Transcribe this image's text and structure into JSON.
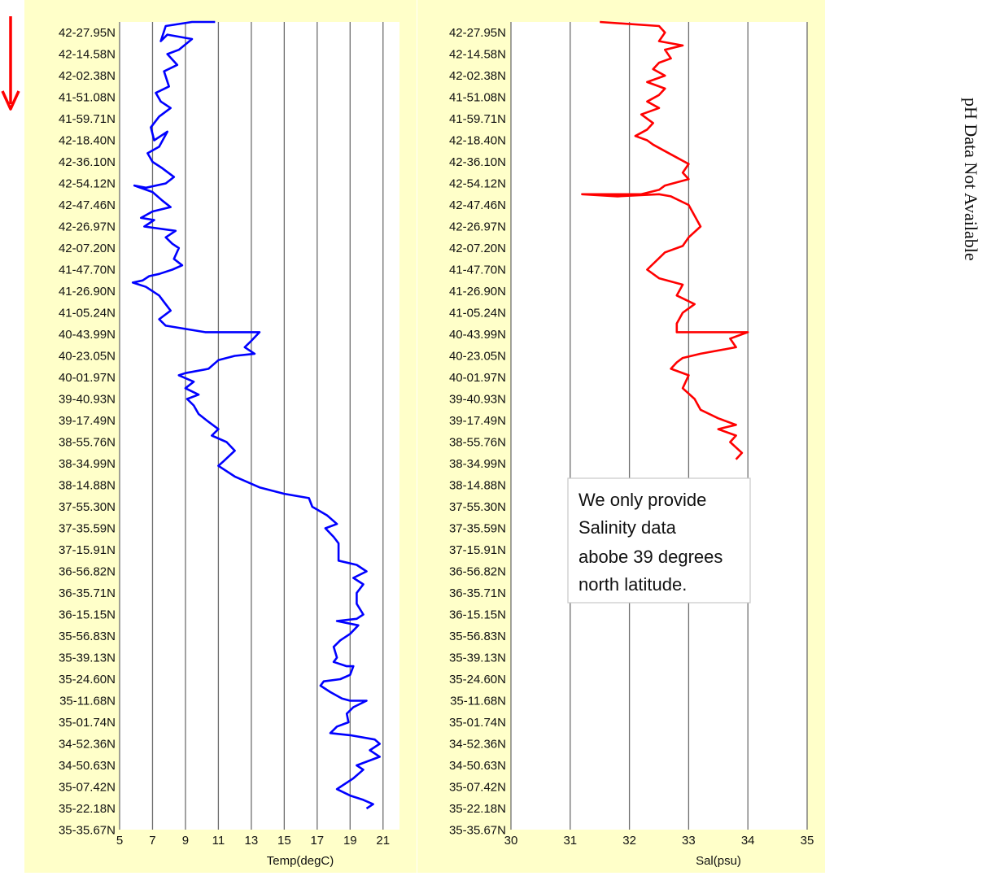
{
  "chart_data": [
    {
      "type": "line",
      "xlabel": "Temp(degC)",
      "ylabel": "",
      "xlim": [
        5,
        22
      ],
      "xticks": [
        5,
        7,
        9,
        11,
        13,
        15,
        17,
        19,
        21
      ],
      "grid": true,
      "categories": [
        "42-27.95N",
        "42-14.58N",
        "42-02.38N",
        "41-51.08N",
        "41-59.71N",
        "42-18.40N",
        "42-36.10N",
        "42-54.12N",
        "42-47.46N",
        "42-26.97N",
        "42-07.20N",
        "41-47.70N",
        "41-26.90N",
        "41-05.24N",
        "40-43.99N",
        "40-23.05N",
        "40-01.97N",
        "39-40.93N",
        "39-17.49N",
        "38-55.76N",
        "38-34.99N",
        "38-14.88N",
        "37-55.30N",
        "37-35.59N",
        "37-15.91N",
        "36-56.82N",
        "36-35.71N",
        "36-15.15N",
        "35-56.83N",
        "35-39.13N",
        "35-24.60N",
        "35-11.68N",
        "35-01.74N",
        "34-52.36N",
        "34-50.63N",
        "35-07.42N",
        "35-22.18N",
        "35-35.67N"
      ],
      "series": [
        {
          "color": "#0000ff",
          "points": [
            [
              10.8,
              -0.5
            ],
            [
              9.4,
              -0.5
            ],
            [
              7.8,
              -0.3
            ],
            [
              7.5,
              0.4
            ],
            [
              7.9,
              0.1
            ],
            [
              9.4,
              0.3
            ],
            [
              8.6,
              0.8
            ],
            [
              7.9,
              1.0
            ],
            [
              8.5,
              1.5
            ],
            [
              7.7,
              1.8
            ],
            [
              8.0,
              2.5
            ],
            [
              7.2,
              2.8
            ],
            [
              7.5,
              3.2
            ],
            [
              8.1,
              3.5
            ],
            [
              7.4,
              3.9
            ],
            [
              6.9,
              4.4
            ],
            [
              7.1,
              5.0
            ],
            [
              7.5,
              4.8
            ],
            [
              7.9,
              4.6
            ],
            [
              7.4,
              5.3
            ],
            [
              6.7,
              5.6
            ],
            [
              7.0,
              6.0
            ],
            [
              7.6,
              6.3
            ],
            [
              8.3,
              6.7
            ],
            [
              7.8,
              7.0
            ],
            [
              6.6,
              7.2
            ],
            [
              5.9,
              7.1
            ],
            [
              7.0,
              7.4
            ],
            [
              7.6,
              7.8
            ],
            [
              8.1,
              8.1
            ],
            [
              7.0,
              8.3
            ],
            [
              6.3,
              8.6
            ],
            [
              7.1,
              8.7
            ],
            [
              6.5,
              9.0
            ],
            [
              8.4,
              9.2
            ],
            [
              7.8,
              9.5
            ],
            [
              8.2,
              9.8
            ],
            [
              8.6,
              10.0
            ],
            [
              8.3,
              10.5
            ],
            [
              8.8,
              10.8
            ],
            [
              8.2,
              11.0
            ],
            [
              7.4,
              11.2
            ],
            [
              6.8,
              11.3
            ],
            [
              6.4,
              11.5
            ],
            [
              5.8,
              11.6
            ],
            [
              6.6,
              11.8
            ],
            [
              7.4,
              12.2
            ],
            [
              7.7,
              12.5
            ],
            [
              8.1,
              12.9
            ],
            [
              7.4,
              13.3
            ],
            [
              7.8,
              13.6
            ],
            [
              10.2,
              13.9
            ],
            [
              13.5,
              13.9
            ],
            [
              13.0,
              14.3
            ],
            [
              12.6,
              14.6
            ],
            [
              13.2,
              14.9
            ],
            [
              12.0,
              15.0
            ],
            [
              11.0,
              15.2
            ],
            [
              10.4,
              15.6
            ],
            [
              9.0,
              15.8
            ],
            [
              8.6,
              15.9
            ],
            [
              9.5,
              16.2
            ],
            [
              9.0,
              16.5
            ],
            [
              9.8,
              16.8
            ],
            [
              9.1,
              17.0
            ],
            [
              9.5,
              17.3
            ],
            [
              9.8,
              17.7
            ],
            [
              10.3,
              18.0
            ],
            [
              11.0,
              18.4
            ],
            [
              10.6,
              18.7
            ],
            [
              11.5,
              19.0
            ],
            [
              12.0,
              19.4
            ],
            [
              11.3,
              19.9
            ],
            [
              11.0,
              20.1
            ],
            [
              12.0,
              20.6
            ],
            [
              13.5,
              21.1
            ],
            [
              15.0,
              21.4
            ],
            [
              16.5,
              21.6
            ],
            [
              16.7,
              22.0
            ],
            [
              17.6,
              22.4
            ],
            [
              18.2,
              22.8
            ],
            [
              17.5,
              23.0
            ],
            [
              18.0,
              23.4
            ],
            [
              18.3,
              23.7
            ],
            [
              18.3,
              24.5
            ],
            [
              19.4,
              24.7
            ],
            [
              20.0,
              25.0
            ],
            [
              19.2,
              25.3
            ],
            [
              19.8,
              25.6
            ],
            [
              19.4,
              26.0
            ],
            [
              19.4,
              26.5
            ],
            [
              19.8,
              27.0
            ],
            [
              19.4,
              27.2
            ],
            [
              18.2,
              27.3
            ],
            [
              19.5,
              27.5
            ],
            [
              19.0,
              27.9
            ],
            [
              18.4,
              28.2
            ],
            [
              18.0,
              28.5
            ],
            [
              18.2,
              29.0
            ],
            [
              18.0,
              29.2
            ],
            [
              18.8,
              29.4
            ],
            [
              19.2,
              29.4
            ],
            [
              19.0,
              29.8
            ],
            [
              18.4,
              30.0
            ],
            [
              17.4,
              30.1
            ],
            [
              17.2,
              30.3
            ],
            [
              17.8,
              30.6
            ],
            [
              18.5,
              30.9
            ],
            [
              19.0,
              31.0
            ],
            [
              20.0,
              31.0
            ],
            [
              19.2,
              31.3
            ],
            [
              18.8,
              31.6
            ],
            [
              18.9,
              32.0
            ],
            [
              18.2,
              32.2
            ],
            [
              17.8,
              32.5
            ],
            [
              19.0,
              32.6
            ],
            [
              20.5,
              32.8
            ],
            [
              20.8,
              33.0
            ],
            [
              20.2,
              33.3
            ],
            [
              20.8,
              33.6
            ],
            [
              19.4,
              34.0
            ],
            [
              19.8,
              34.2
            ],
            [
              19.2,
              34.6
            ],
            [
              18.4,
              35.0
            ],
            [
              18.2,
              35.1
            ],
            [
              19.0,
              35.4
            ],
            [
              19.8,
              35.6
            ],
            [
              20.4,
              35.8
            ],
            [
              20.0,
              36.0
            ]
          ]
        }
      ]
    },
    {
      "type": "line",
      "xlabel": "Sal(psu)",
      "ylabel": "",
      "xlim": [
        30,
        35
      ],
      "xticks": [
        30,
        31,
        32,
        33,
        34,
        35
      ],
      "grid": true,
      "categories": [
        "42-27.95N",
        "42-14.58N",
        "42-02.38N",
        "41-51.08N",
        "41-59.71N",
        "42-18.40N",
        "42-36.10N",
        "42-54.12N",
        "42-47.46N",
        "42-26.97N",
        "42-07.20N",
        "41-47.70N",
        "41-26.90N",
        "41-05.24N",
        "40-43.99N",
        "40-23.05N",
        "40-01.97N",
        "39-40.93N",
        "39-17.49N",
        "38-55.76N",
        "38-34.99N",
        "38-14.88N",
        "37-55.30N",
        "37-35.59N",
        "37-15.91N",
        "36-56.82N",
        "36-35.71N",
        "36-15.15N",
        "35-56.83N",
        "35-39.13N",
        "35-24.60N",
        "35-11.68N",
        "35-01.74N",
        "34-52.36N",
        "34-50.63N",
        "35-07.42N",
        "35-22.18N",
        "35-35.67N"
      ],
      "series": [
        {
          "color": "#ff0000",
          "points": [
            [
              31.5,
              -0.5
            ],
            [
              32.5,
              -0.3
            ],
            [
              32.6,
              0.0
            ],
            [
              32.5,
              0.4
            ],
            [
              32.9,
              0.6
            ],
            [
              32.6,
              0.8
            ],
            [
              32.7,
              1.2
            ],
            [
              32.5,
              1.4
            ],
            [
              32.4,
              1.7
            ],
            [
              32.6,
              2.0
            ],
            [
              32.3,
              2.3
            ],
            [
              32.6,
              2.6
            ],
            [
              32.5,
              2.9
            ],
            [
              32.3,
              3.2
            ],
            [
              32.5,
              3.5
            ],
            [
              32.2,
              3.8
            ],
            [
              32.4,
              4.2
            ],
            [
              32.3,
              4.5
            ],
            [
              32.1,
              4.8
            ],
            [
              32.3,
              5.0
            ],
            [
              32.4,
              5.2
            ],
            [
              32.6,
              5.5
            ],
            [
              32.8,
              5.8
            ],
            [
              33.0,
              6.1
            ],
            [
              32.9,
              6.5
            ],
            [
              33.0,
              6.8
            ],
            [
              32.6,
              7.1
            ],
            [
              32.5,
              7.3
            ],
            [
              32.2,
              7.5
            ],
            [
              31.2,
              7.5
            ],
            [
              31.8,
              7.6
            ],
            [
              32.5,
              7.5
            ],
            [
              32.7,
              7.6
            ],
            [
              33.0,
              8.0
            ],
            [
              33.1,
              8.5
            ],
            [
              33.2,
              9.0
            ],
            [
              33.0,
              9.5
            ],
            [
              32.9,
              9.9
            ],
            [
              32.6,
              10.2
            ],
            [
              32.3,
              11.0
            ],
            [
              32.5,
              11.4
            ],
            [
              32.9,
              11.7
            ],
            [
              32.8,
              12.2
            ],
            [
              33.1,
              12.6
            ],
            [
              32.9,
              13.0
            ],
            [
              32.8,
              13.5
            ],
            [
              32.8,
              13.9
            ],
            [
              34.0,
              13.9
            ],
            [
              33.7,
              14.2
            ],
            [
              33.8,
              14.6
            ],
            [
              33.2,
              14.9
            ],
            [
              32.9,
              15.1
            ],
            [
              32.8,
              15.3
            ],
            [
              32.7,
              15.6
            ],
            [
              33.0,
              15.9
            ],
            [
              32.9,
              16.5
            ],
            [
              33.1,
              17.0
            ],
            [
              33.2,
              17.5
            ],
            [
              33.5,
              17.9
            ],
            [
              33.8,
              18.2
            ],
            [
              33.5,
              18.4
            ],
            [
              33.8,
              18.7
            ],
            [
              33.7,
              19.0
            ],
            [
              33.9,
              19.5
            ],
            [
              33.8,
              19.8
            ]
          ]
        }
      ]
    }
  ],
  "note": {
    "lines": [
      "We only provide",
      "Salinity data",
      "abobe 39 degrees",
      "north latitude."
    ]
  },
  "side_label": "pH Data Not Available",
  "colors": {
    "panel_background": "#ffffc9",
    "plot_background": "#ffffff",
    "arrow": "#ff0000"
  }
}
